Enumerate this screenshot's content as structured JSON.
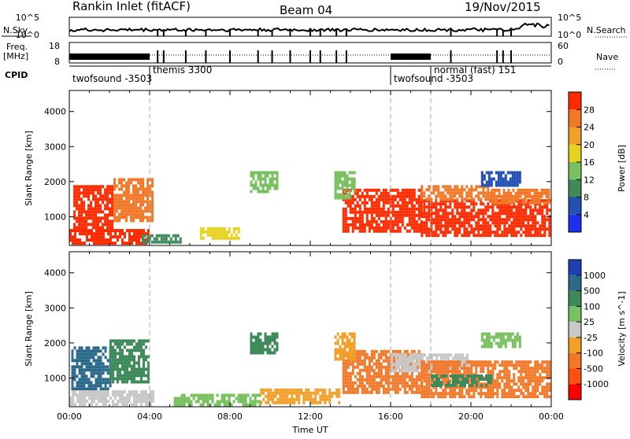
{
  "header": {
    "station": "Rankin Inlet (fitACF)",
    "beam": "Beam 04",
    "date": "19/Nov/2015"
  },
  "strip_labels": {
    "nsky": "N.Sky",
    "freq_line1": "Freq.",
    "freq_line2": "[MHz]",
    "cpid": "CPID",
    "nsearch": "N.Search",
    "nave": "Nave"
  },
  "strip_ticks": {
    "sky_top": "10^5",
    "sky_bottom": "10^0",
    "freq_top": "18",
    "freq_bottom": "8",
    "search_top": "10^5",
    "search_bottom": "10^0",
    "nave_top": "60",
    "nave_bottom": "0"
  },
  "cpid_segments": [
    {
      "label": "twofsound -3503",
      "start": 0.0
    },
    {
      "label": "themis 3300",
      "start": 4.0
    },
    {
      "label": "twofsound -3503",
      "start": 16.0
    },
    {
      "label": "normal (fast) 151",
      "start": 18.0
    }
  ],
  "time_axis": {
    "xlabel": "Time UT",
    "ticks": [
      "00:00",
      "04:00",
      "08:00",
      "12:00",
      "16:00",
      "20:00",
      "00:00"
    ],
    "tick_hours": [
      0,
      4,
      8,
      12,
      16,
      20,
      24
    ]
  },
  "range_axis": {
    "ylabel": "Slant Range [km]",
    "ticks": [
      "1000",
      "2000",
      "3000",
      "4000"
    ],
    "values": [
      1000,
      2000,
      3000,
      4000
    ],
    "ylim": [
      180,
      4600
    ]
  },
  "power_colorbar": {
    "label": "Power [dB]",
    "ticks": [
      "4",
      "8",
      "12",
      "16",
      "20",
      "24",
      "28"
    ],
    "colors": [
      "#1f2ff0",
      "#2450b4",
      "#3f8a5a",
      "#78c060",
      "#e6d21e",
      "#f0a028",
      "#f07828",
      "#ff2a00"
    ]
  },
  "velocity_colorbar": {
    "label": "Velocity [m s^-1]",
    "ticks": [
      "1000",
      "500",
      "100",
      "25",
      "-25",
      "-100",
      "-500",
      "-1000"
    ],
    "colors": [
      "#1f3fb4",
      "#2c6a8c",
      "#3f8a5a",
      "#78c060",
      "#c8c8c8",
      "#f0a028",
      "#f07828",
      "#ff5010",
      "#ff0000"
    ]
  },
  "chart_data": {
    "type": "heatmap",
    "x_units": "hours UT",
    "y_units": "km",
    "xlim": [
      0,
      24
    ],
    "ylim": [
      180,
      4600
    ],
    "power_regions": [
      {
        "t0": 0.2,
        "t1": 2.2,
        "r0": 700,
        "r1": 1900,
        "color": "#ff2a00"
      },
      {
        "t0": 2.2,
        "t1": 4.1,
        "r0": 900,
        "r1": 2100,
        "color": "#f07828"
      },
      {
        "t0": 0.0,
        "t1": 4.0,
        "r0": 250,
        "r1": 650,
        "color": "#ff2a00"
      },
      {
        "t0": 3.6,
        "t1": 5.6,
        "r0": 250,
        "r1": 500,
        "color": "#3f8a5a"
      },
      {
        "t0": 6.5,
        "t1": 8.5,
        "r0": 350,
        "r1": 700,
        "color": "#e6d21e"
      },
      {
        "t0": 13.6,
        "t1": 17.5,
        "r0": 600,
        "r1": 1800,
        "color": "#ff2a00"
      },
      {
        "t0": 17.5,
        "t1": 23.9,
        "r0": 500,
        "r1": 1500,
        "color": "#ff2a00"
      },
      {
        "t0": 17.5,
        "t1": 21.0,
        "r0": 1500,
        "r1": 1900,
        "color": "#f07828"
      },
      {
        "t0": 21.0,
        "t1": 23.9,
        "r0": 1400,
        "r1": 1800,
        "color": "#f07828"
      },
      {
        "t0": 9.0,
        "t1": 10.3,
        "r0": 1700,
        "r1": 2300,
        "color": "#78c060"
      },
      {
        "t0": 13.2,
        "t1": 14.2,
        "r0": 1500,
        "r1": 2300,
        "color": "#78c060"
      },
      {
        "t0": 20.5,
        "t1": 22.5,
        "r0": 1900,
        "r1": 2300,
        "color": "#2450b4"
      }
    ],
    "velocity_regions": [
      {
        "t0": 0.1,
        "t1": 2.0,
        "r0": 700,
        "r1": 1900,
        "color": "#2c6a8c"
      },
      {
        "t0": 2.0,
        "t1": 4.0,
        "r0": 900,
        "r1": 2100,
        "color": "#3f8a5a"
      },
      {
        "t0": 0.0,
        "t1": 4.2,
        "r0": 250,
        "r1": 650,
        "color": "#c8c8c8"
      },
      {
        "t0": 5.2,
        "t1": 9.5,
        "r0": 250,
        "r1": 550,
        "color": "#78c060"
      },
      {
        "t0": 9.5,
        "t1": 13.5,
        "r0": 300,
        "r1": 700,
        "color": "#f0a028"
      },
      {
        "t0": 13.6,
        "t1": 17.5,
        "r0": 600,
        "r1": 1800,
        "color": "#f07828"
      },
      {
        "t0": 16.0,
        "t1": 20.0,
        "r0": 1200,
        "r1": 1700,
        "color": "#c8c8c8"
      },
      {
        "t0": 17.5,
        "t1": 23.9,
        "r0": 500,
        "r1": 1500,
        "color": "#f07828"
      },
      {
        "t0": 18.0,
        "t1": 21.0,
        "r0": 800,
        "r1": 1100,
        "color": "#3f8a5a"
      },
      {
        "t0": 9.0,
        "t1": 10.3,
        "r0": 1700,
        "r1": 2300,
        "color": "#3f8a5a"
      },
      {
        "t0": 13.2,
        "t1": 14.2,
        "r0": 1500,
        "r1": 2300,
        "color": "#f0a028"
      },
      {
        "t0": 20.5,
        "t1": 22.5,
        "r0": 1900,
        "r1": 2300,
        "color": "#78c060"
      }
    ],
    "dashed_lines_hours": [
      4.0,
      16.0,
      18.0
    ]
  }
}
